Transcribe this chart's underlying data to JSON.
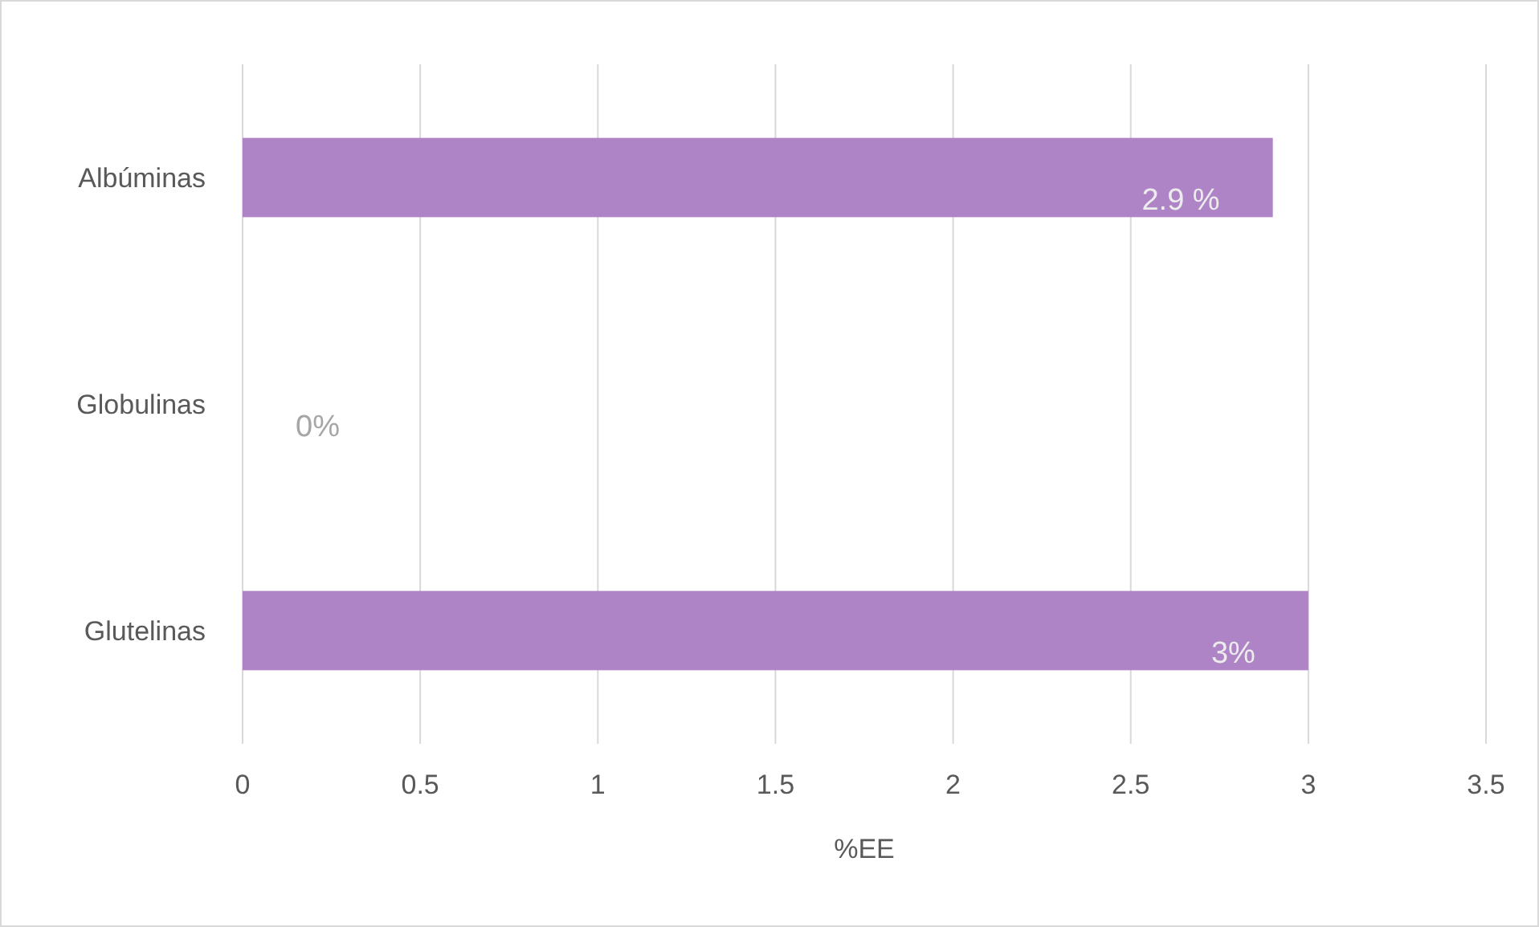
{
  "chart_data": {
    "type": "bar",
    "orientation": "horizontal",
    "categories": [
      "Albúminas",
      "Globulinas",
      "Glutelinas"
    ],
    "values": [
      2.9,
      0,
      3
    ],
    "value_labels": [
      "2.9 %",
      "0%",
      "3%"
    ],
    "color": "#ae84c6",
    "xlabel": "%EE",
    "xlim": [
      0,
      3.5
    ],
    "xticks": [
      0,
      0.5,
      1,
      1.5,
      2,
      2.5,
      3,
      3.5
    ],
    "grid": "x"
  }
}
